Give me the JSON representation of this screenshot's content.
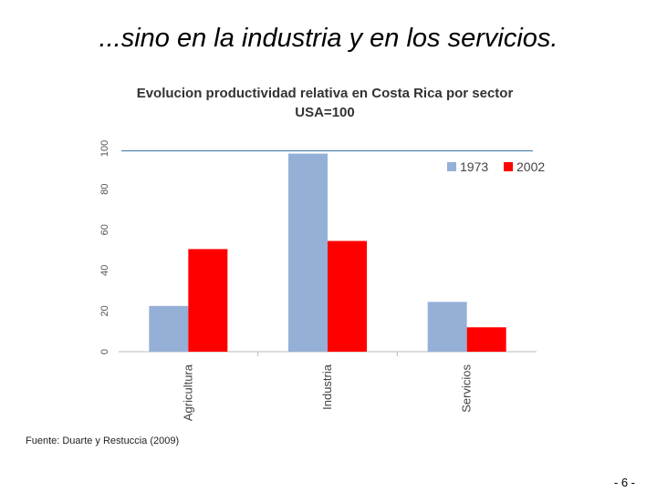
{
  "slide": {
    "title": "...sino en la industria y en los servicios.",
    "source": "Fuente: Duarte y Restuccia (2009)",
    "page_number": "- 6 -"
  },
  "chart_data": {
    "type": "bar",
    "title": "Evolucion productividad  relativa en Costa Rica por sector",
    "subtitle": "USA=100",
    "categories": [
      "Agricultura",
      "Industria",
      "Servicios"
    ],
    "series": [
      {
        "name": "1973",
        "color": "#95b0d6",
        "values": [
          22.5,
          97.5,
          24.5
        ]
      },
      {
        "name": "2002",
        "color": "#ff0000",
        "values": [
          50.5,
          54.5,
          12
        ]
      }
    ],
    "yticks": [
      0,
      20,
      40,
      60,
      80,
      100
    ],
    "ylim": [
      0,
      100
    ],
    "reference_line": {
      "value": 97.5,
      "color": "#4a7fa8"
    },
    "legend": "top-right",
    "xlabel": "",
    "ylabel": ""
  }
}
